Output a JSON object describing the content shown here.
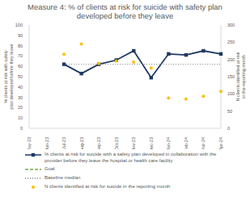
{
  "chart_data": {
    "type": "line",
    "title": "Measure 4: % of clients at risk for suicide with safety plan developed before they leave",
    "categories": [
      "May-23",
      "Jun-23",
      "Jul-23",
      "Aug-23",
      "Sep-23",
      "Oct-23",
      "Nov-23",
      "Dec-23",
      "Jan-24",
      "Feb-24",
      "Mar-24",
      "Apr-24"
    ],
    "y_label": "% clients at risk with safety plan developed before they leave",
    "y2_label": "N clients identified at risk in the reporting month",
    "ylim": [
      0,
      100
    ],
    "yticks": [
      0,
      10,
      20,
      30,
      40,
      50,
      60,
      70,
      80,
      90,
      100
    ],
    "y2lim": [
      0,
      300
    ],
    "y2ticks": [
      0,
      50,
      100,
      150,
      200,
      250,
      300
    ],
    "legend": "bottom",
    "series": [
      {
        "name": "% clients at risk for suicide with a safety plan developed in collaboration with the provider before they leave the hospital or health care facility",
        "color": "#1f3864",
        "marker": "square",
        "line_style": "solid",
        "values": [
          null,
          null,
          62,
          53,
          62,
          66,
          75,
          49,
          72,
          71,
          75,
          72
        ]
      },
      {
        "name": "Goal",
        "color": "#70ad47",
        "line_style": "dashed",
        "values": [
          null,
          null,
          null,
          null,
          null,
          null,
          null,
          null,
          null,
          null,
          null,
          null
        ]
      },
      {
        "name": "Baseline median",
        "color": "#7f7f7f",
        "line_style": "dotted",
        "values": [
          null,
          null,
          62,
          62,
          62,
          62,
          62,
          62,
          62,
          62,
          62,
          62
        ]
      },
      {
        "name": "N clients identified at risk for suicide in the reporting month",
        "type": "scatter",
        "axis": "y2",
        "color": "#ffc000",
        "marker": "circle",
        "values": [
          null,
          null,
          215,
          245,
          188,
          195,
          192,
          175,
          88,
          85,
          93,
          107
        ]
      }
    ]
  }
}
